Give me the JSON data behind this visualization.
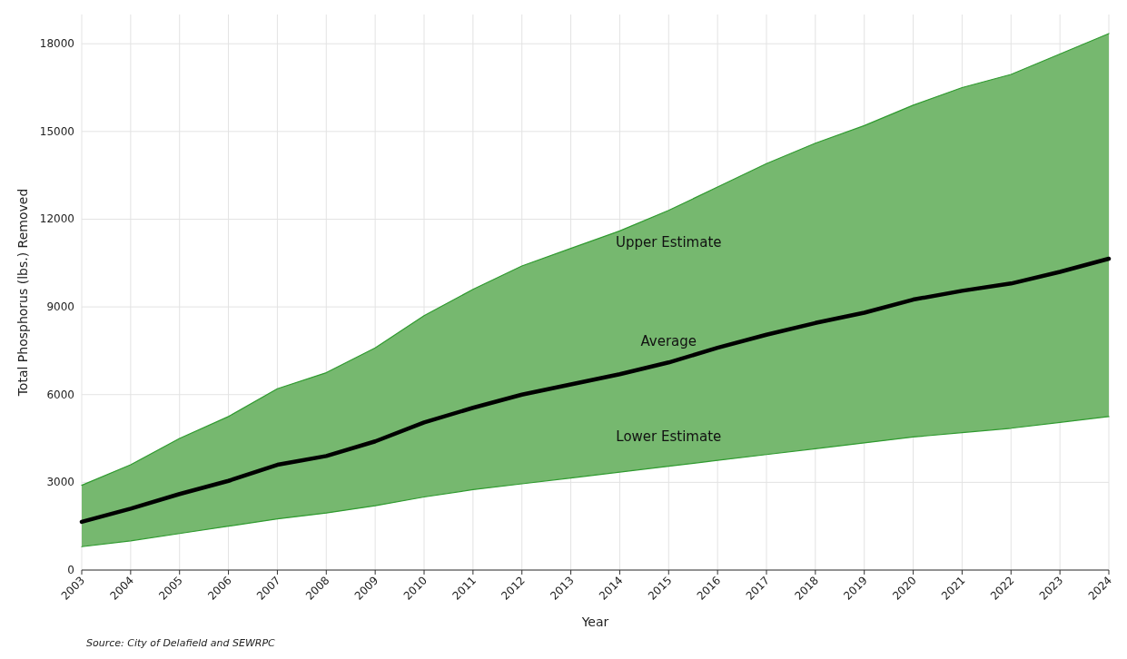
{
  "chart_data": {
    "type": "line",
    "xlabel": "Year",
    "ylabel": "Total Phosphorus (lbs.) Removed",
    "x": [
      2003,
      2004,
      2005,
      2006,
      2007,
      2008,
      2009,
      2010,
      2011,
      2012,
      2013,
      2014,
      2015,
      2016,
      2017,
      2018,
      2019,
      2020,
      2021,
      2022,
      2023,
      2024
    ],
    "series": [
      {
        "name": "Upper Estimate",
        "color": "#2f9a2f",
        "values": [
          2900,
          3600,
          4500,
          5250,
          6200,
          6750,
          7600,
          8700,
          9600,
          10400,
          11000,
          11600,
          12300,
          13100,
          13900,
          14600,
          15200,
          15900,
          16500,
          16950,
          17650,
          18350
        ]
      },
      {
        "name": "Average",
        "color": "#000000",
        "values": [
          1650,
          2100,
          2600,
          3050,
          3600,
          3900,
          4400,
          5050,
          5550,
          6000,
          6350,
          6700,
          7100,
          7600,
          8050,
          8450,
          8800,
          9250,
          9550,
          9800,
          10200,
          10650
        ],
        "lower": [
          800,
          1000,
          1250,
          1500,
          1750,
          1950,
          2200,
          2500,
          2750,
          2950,
          3150,
          3350,
          3550,
          3750,
          3950,
          4150,
          4350,
          4550,
          4700,
          4850,
          5050,
          5250
        ],
        "upper": [
          2900,
          3600,
          4500,
          5250,
          6200,
          6750,
          7600,
          8700,
          9600,
          10400,
          11000,
          11600,
          12300,
          13100,
          13900,
          14600,
          15200,
          15900,
          16500,
          16950,
          17650,
          18350
        ]
      },
      {
        "name": "Lower Estimate",
        "color": "#2f9a2f",
        "values": [
          800,
          1000,
          1250,
          1500,
          1750,
          1950,
          2200,
          2500,
          2750,
          2950,
          3150,
          3350,
          3550,
          3750,
          3950,
          4150,
          4350,
          4550,
          4700,
          4850,
          5050,
          5250
        ]
      }
    ],
    "xlim": [
      2003,
      2024
    ],
    "xticks": [
      2003,
      2004,
      2005,
      2006,
      2007,
      2008,
      2009,
      2010,
      2011,
      2012,
      2013,
      2014,
      2015,
      2016,
      2017,
      2018,
      2019,
      2020,
      2021,
      2022,
      2023,
      2024
    ],
    "ylim": [
      0,
      19000
    ],
    "yticks": [
      0,
      3000,
      6000,
      9000,
      12000,
      15000,
      18000
    ],
    "grid": true,
    "marker": "none",
    "line_style": "solid",
    "annotations": [
      "Source: City of Delafield and SEWRPC"
    ]
  }
}
